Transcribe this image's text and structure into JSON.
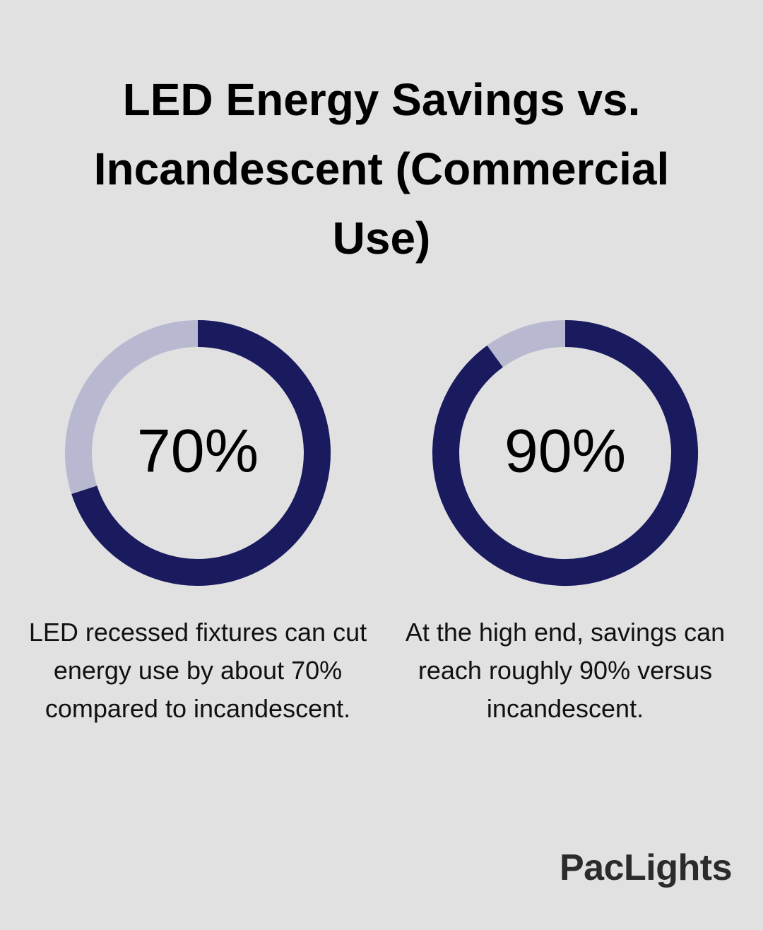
{
  "title": "LED Energy Savings vs. Incandescent (Commercial Use)",
  "brand": "PacLights",
  "chart_data": [
    {
      "type": "donut",
      "values": [
        70
      ],
      "value_labels": [
        "70%"
      ],
      "ylim": [
        0,
        100
      ],
      "color": "#1a1a5e",
      "track_color": "#b8b9d1",
      "caption": "LED recessed fixtures can cut energy use by about 70% compared to incandescent."
    },
    {
      "type": "donut",
      "values": [
        90
      ],
      "value_labels": [
        "90%"
      ],
      "ylim": [
        0,
        100
      ],
      "color": "#1a1a5e",
      "track_color": "#b8b9d1",
      "caption": "At the high end, savings can reach roughly 90% versus incandescent."
    }
  ]
}
